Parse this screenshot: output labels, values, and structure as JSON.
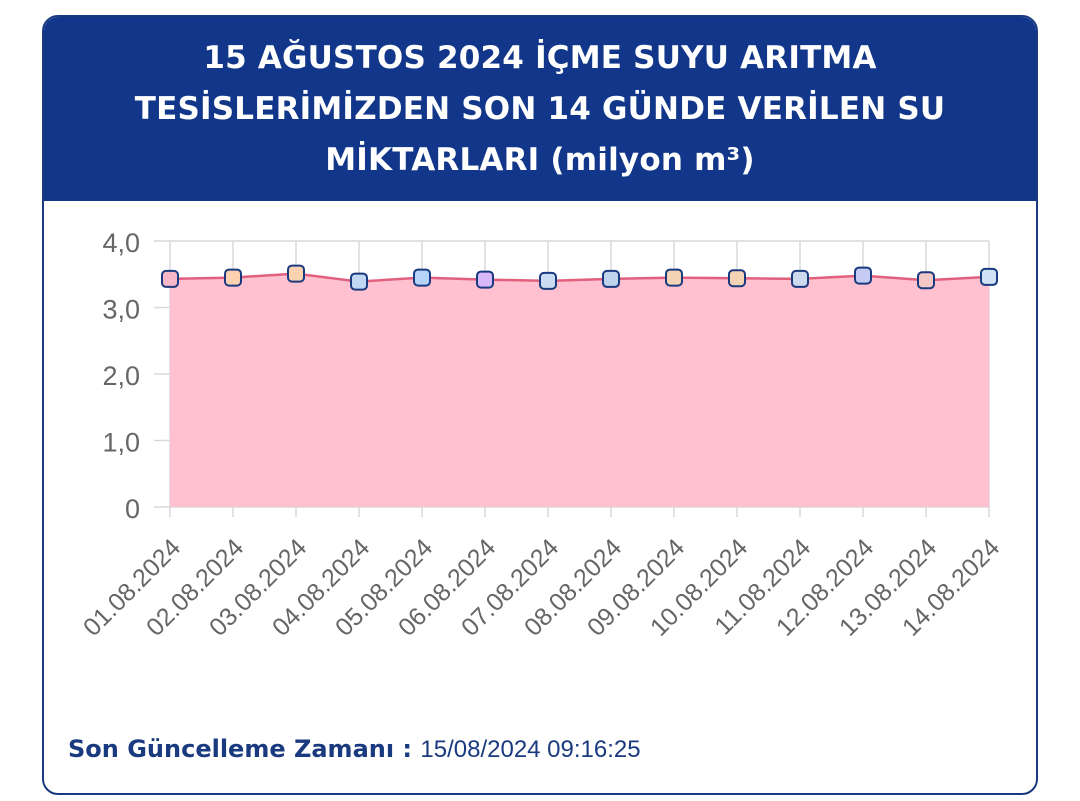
{
  "header": {
    "title": "15 AĞUSTOS 2024 İÇME SUYU ARITMA TESİSLERİMİZDEN SON 14 GÜNDE VERİLEN SU MİKTARLARI (milyon m³)"
  },
  "chart_data": {
    "type": "area",
    "title": "15 AĞUSTOS 2024 İÇME SUYU ARITMA TESİSLERİMİZDEN SON 14 GÜNDE VERİLEN SU MİKTARLARI (milyon m³)",
    "categories": [
      "01.08.2024",
      "02.08.2024",
      "03.08.2024",
      "04.08.2024",
      "05.08.2024",
      "06.08.2024",
      "07.08.2024",
      "08.08.2024",
      "09.08.2024",
      "10.08.2024",
      "11.08.2024",
      "12.08.2024",
      "13.08.2024",
      "14.08.2024"
    ],
    "values": [
      3.43,
      3.45,
      3.51,
      3.39,
      3.45,
      3.42,
      3.4,
      3.43,
      3.45,
      3.44,
      3.43,
      3.48,
      3.41,
      3.46
    ],
    "ylim": [
      0,
      4
    ],
    "yticks": [
      "0",
      "1,0",
      "2,0",
      "3,0",
      "4,0"
    ],
    "xlabel": "",
    "ylabel": "",
    "grid": true,
    "colors": {
      "area_fill": "#ffc0cf",
      "line": "#e0607e",
      "marker_stroke": "#1a3a7f",
      "marker_fills": [
        "#f6b8c8",
        "#fcd2b0",
        "#fcd2b0",
        "#c2d8f2",
        "#b5d4f8",
        "#d8b8f8",
        "#c9dcf2",
        "#c0d5ec",
        "#f5d4b5",
        "#f5d4b5",
        "#cdd9ec",
        "#c5cbf2",
        "#f5c8c8",
        "#cfe2f8"
      ]
    }
  },
  "footer": {
    "label": "Son Güncelleme Zamanı",
    "separator": " : ",
    "value": "15/08/2024 09:16:25"
  }
}
